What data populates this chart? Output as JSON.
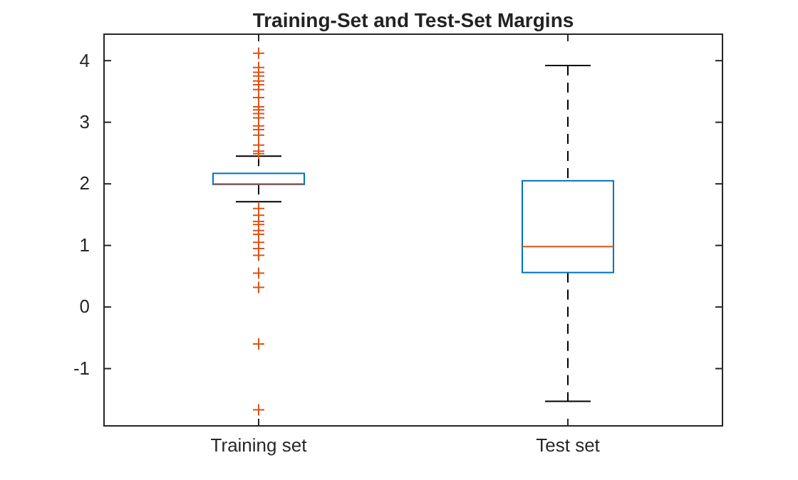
{
  "chart_data": {
    "type": "box",
    "title": "Training-Set and Test-Set Margins",
    "categories": [
      "Training set",
      "Test set"
    ],
    "boxes": [
      {
        "low": 1.71,
        "q1": 1.99,
        "median": 2.0,
        "q3": 2.17,
        "high": 2.45,
        "outliers": [
          4.12,
          3.89,
          3.81,
          3.75,
          3.67,
          3.61,
          3.53,
          3.4,
          3.25,
          3.2,
          3.14,
          3.07,
          2.94,
          2.88,
          2.79,
          2.63,
          2.53,
          2.49,
          1.6,
          1.49,
          1.39,
          1.34,
          1.24,
          1.18,
          1.05,
          0.95,
          0.84,
          0.55,
          0.32,
          -0.6,
          -1.67
        ]
      },
      {
        "low": -1.53,
        "q1": 0.56,
        "median": 0.98,
        "q3": 2.05,
        "high": 3.92
      }
    ],
    "color": "#0072bd",
    "line_style": "dashed",
    "marker": "cross",
    "ylim": [
      -1.93,
      4.43
    ],
    "yticks": [
      -1,
      0,
      1,
      2,
      3,
      4
    ]
  }
}
